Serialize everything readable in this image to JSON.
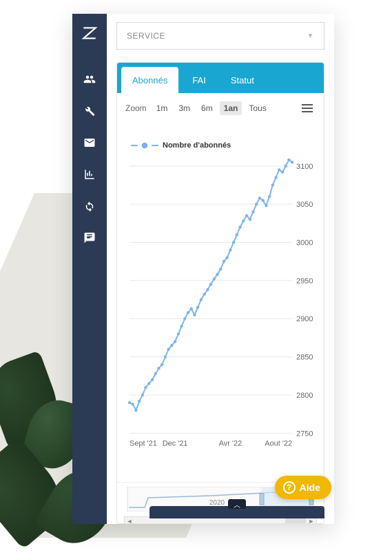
{
  "sidebar": {
    "logo": "Z",
    "items": [
      {
        "name": "users-icon"
      },
      {
        "name": "wrench-icon"
      },
      {
        "name": "mail-icon"
      },
      {
        "name": "chart-icon"
      },
      {
        "name": "refresh-icon"
      },
      {
        "name": "message-icon"
      }
    ]
  },
  "service_select": {
    "label": "SERVICE"
  },
  "tabs": {
    "items": [
      {
        "label": "Abonnés",
        "active": true
      },
      {
        "label": "FAI",
        "active": false
      },
      {
        "label": "Statut",
        "active": false
      }
    ]
  },
  "toolbar": {
    "zoom_label": "Zoom",
    "zoom_options": [
      {
        "label": "1m",
        "active": false
      },
      {
        "label": "3m",
        "active": false
      },
      {
        "label": "6m",
        "active": false
      },
      {
        "label": "1an",
        "active": true
      },
      {
        "label": "Tous",
        "active": false
      }
    ]
  },
  "chart": {
    "type": "line",
    "series_label": "Nombre d'abonnés",
    "series_color": "#7cb5ec",
    "background_color": "#ffffff",
    "grid_color": "#e8e8e8",
    "ylim": [
      2750,
      3110
    ],
    "yticks": [
      2750,
      2800,
      2850,
      2900,
      2950,
      3000,
      3050,
      3100
    ],
    "xticks": [
      "Sept '21",
      "Dec '21",
      "Avr '22",
      "Aout '22"
    ],
    "line_width": 2,
    "marker_size": 2.2,
    "points": [
      [
        0,
        2790
      ],
      [
        2,
        2788
      ],
      [
        4,
        2780
      ],
      [
        6,
        2792
      ],
      [
        8,
        2800
      ],
      [
        10,
        2810
      ],
      [
        12,
        2815
      ],
      [
        14,
        2820
      ],
      [
        16,
        2828
      ],
      [
        18,
        2835
      ],
      [
        20,
        2840
      ],
      [
        22,
        2850
      ],
      [
        24,
        2860
      ],
      [
        26,
        2865
      ],
      [
        28,
        2870
      ],
      [
        30,
        2880
      ],
      [
        32,
        2890
      ],
      [
        34,
        2900
      ],
      [
        36,
        2908
      ],
      [
        38,
        2913
      ],
      [
        40,
        2905
      ],
      [
        42,
        2915
      ],
      [
        44,
        2925
      ],
      [
        46,
        2932
      ],
      [
        48,
        2938
      ],
      [
        50,
        2945
      ],
      [
        52,
        2952
      ],
      [
        54,
        2958
      ],
      [
        56,
        2965
      ],
      [
        58,
        2975
      ],
      [
        60,
        2980
      ],
      [
        62,
        2990
      ],
      [
        64,
        3000
      ],
      [
        66,
        3010
      ],
      [
        68,
        3020
      ],
      [
        70,
        3028
      ],
      [
        72,
        3035
      ],
      [
        74,
        3030
      ],
      [
        76,
        3040
      ],
      [
        78,
        3050
      ],
      [
        80,
        3058
      ],
      [
        82,
        3055
      ],
      [
        84,
        3048
      ],
      [
        86,
        3060
      ],
      [
        88,
        3075
      ],
      [
        90,
        3085
      ],
      [
        92,
        3095
      ],
      [
        94,
        3092
      ],
      [
        96,
        3100
      ],
      [
        98,
        3108
      ],
      [
        100,
        3105
      ]
    ],
    "label_fontsize": 11
  },
  "navigator": {
    "label": "2020",
    "range_fill": "#d6e7f5",
    "handle_color": "#b6cfe4"
  },
  "help": {
    "label": "Aide"
  }
}
